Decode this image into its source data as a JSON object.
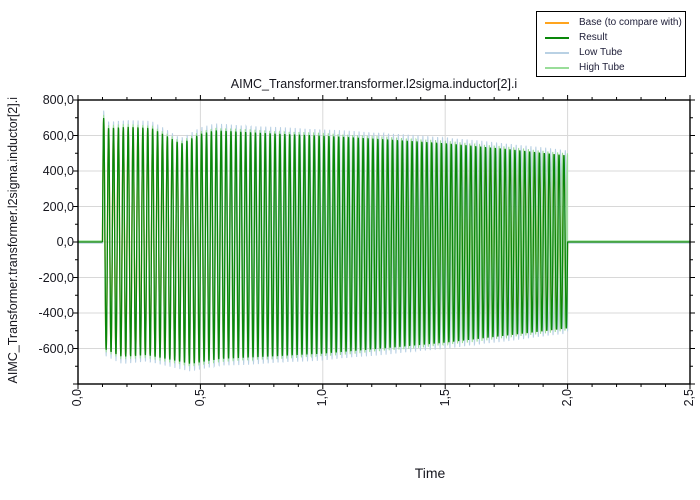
{
  "title": "AIMC_Transformer.transformer.l2sigma.inductor[2].i",
  "y_axis_label": "AIMC_Transformer.transformer.l2sigma.inductor[2].i",
  "x_axis_label": "Time",
  "legend": {
    "items": [
      {
        "name": "base",
        "label": "Base (to compare with)",
        "color": "#ffa41e"
      },
      {
        "name": "result",
        "label": "Result",
        "color": "#0a870a"
      },
      {
        "name": "low-tube",
        "label": "Low Tube",
        "color": "#b9d1e4"
      },
      {
        "name": "high-tube",
        "label": "High Tube",
        "color": "#99dd99"
      }
    ]
  },
  "chart_data": {
    "type": "line",
    "title": "AIMC_Transformer.transformer.l2sigma.inductor[2].i",
    "xlabel": "Time",
    "ylabel": "AIMC_Transformer.transformer.l2sigma.inductor[2].i",
    "xlim": [
      0,
      2.5
    ],
    "ylim": [
      -800,
      800
    ],
    "grid": {
      "x": [
        0.5,
        1.0,
        1.5,
        2.0
      ],
      "y": [
        600,
        400,
        200,
        0,
        -200,
        -400,
        -600
      ]
    },
    "x_ticks": {
      "values": [
        0,
        0.5,
        1.0,
        1.5,
        2.0,
        2.5
      ],
      "labels": [
        "0,0",
        "0,5",
        "1,0",
        "1,5",
        "2,0",
        "2,5"
      ],
      "minor_step": 0.1,
      "label_rotation_deg": -90
    },
    "y_ticks": {
      "values": [
        800,
        600,
        400,
        200,
        0,
        -200,
        -400,
        -600
      ],
      "labels": [
        "800,0",
        "600,0",
        "400,0",
        "200,0",
        "0,0",
        "-200,0",
        "-400,0",
        "-600,0"
      ],
      "all_major": [
        -800,
        -600,
        -400,
        -200,
        0,
        200,
        400,
        600,
        800
      ],
      "minor_step": 100
    },
    "colors": {
      "grid": "#d8d8d8",
      "frame": "#000000"
    },
    "legend_position": "top-right",
    "signal": {
      "description": "Zero until t=0.1, 50 Hz sinusoidal burst from t=0.1 to t=2.0, zero afterwards",
      "flat_value": 0,
      "start_time": 0.1,
      "end_time": 2.0,
      "frequency_hz": 50,
      "upper_envelope": [
        [
          0.105,
          700
        ],
        [
          0.125,
          642
        ],
        [
          0.2,
          650
        ],
        [
          0.3,
          643
        ],
        [
          0.36,
          600
        ],
        [
          0.42,
          554
        ],
        [
          0.5,
          610
        ],
        [
          0.56,
          630
        ],
        [
          0.8,
          612
        ],
        [
          1.0,
          600
        ],
        [
          1.25,
          580
        ],
        [
          1.5,
          557
        ],
        [
          1.75,
          525
        ],
        [
          2.0,
          488
        ]
      ],
      "lower_envelope": [
        [
          0.105,
          602
        ],
        [
          0.18,
          648
        ],
        [
          0.28,
          638
        ],
        [
          0.38,
          665
        ],
        [
          0.46,
          688
        ],
        [
          0.58,
          660
        ],
        [
          0.8,
          645
        ],
        [
          1.0,
          630
        ],
        [
          1.25,
          600
        ],
        [
          1.5,
          568
        ],
        [
          1.75,
          528
        ],
        [
          2.0,
          487
        ]
      ]
    },
    "series": [
      {
        "name": "base",
        "label": "Base (to compare with)",
        "color": "#ffa41e",
        "width": 1.3,
        "amp_scale": 1.0,
        "phase": 0,
        "frequency_scale": 1.0,
        "flat_offset": 0
      },
      {
        "name": "low-tube",
        "label": "Low Tube",
        "color": "#b9d1e4",
        "width": 1.0,
        "amp_scale": 1.06,
        "phase": 0,
        "frequency_scale": 0.997,
        "flat_offset": -6
      },
      {
        "name": "high-tube",
        "label": "High Tube",
        "color": "#99dd99",
        "width": 1.0,
        "amp_scale": 1.025,
        "phase": 0,
        "frequency_scale": 1.003,
        "flat_offset": 6
      },
      {
        "name": "result",
        "label": "Result",
        "color": "#0a870a",
        "width": 1.3,
        "amp_scale": 1.0,
        "phase": 0,
        "frequency_scale": 1.0,
        "flat_offset": 0
      }
    ]
  }
}
